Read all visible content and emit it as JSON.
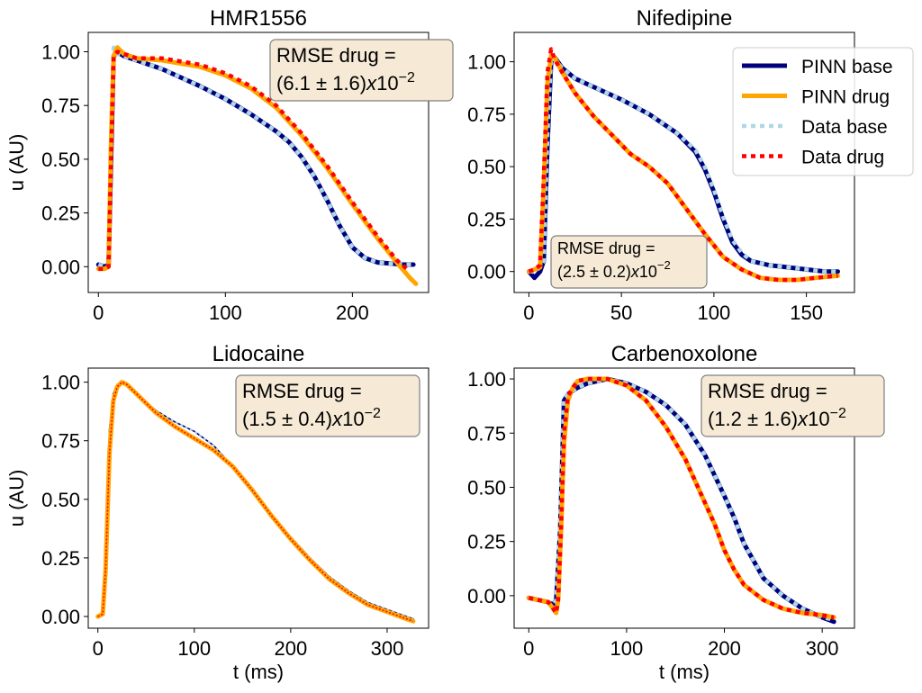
{
  "colors": {
    "pinn_base": "#00007f",
    "pinn_drug": "#ffa500",
    "data_base": "#add8e6",
    "data_drug": "#ff0000",
    "box_fill": "#f6ead6",
    "box_stroke": "#7f7f7f"
  },
  "legend": {
    "entries": [
      {
        "name": "PINN base",
        "style": "pinn_base"
      },
      {
        "name": "PINN drug",
        "style": "pinn_drug"
      },
      {
        "name": "Data base",
        "style": "data_base"
      },
      {
        "name": "Data drug",
        "style": "data_drug"
      }
    ]
  },
  "chart_data": [
    {
      "type": "line",
      "title": "HMR1556",
      "xlabel": "",
      "ylabel": "u (AU)",
      "xlim": [
        -8,
        260
      ],
      "ylim": [
        -0.12,
        1.09
      ],
      "xticks": [
        0,
        100,
        200
      ],
      "yticks": [
        0.0,
        0.25,
        0.5,
        0.75,
        1.0
      ],
      "annotation": {
        "line1": "RMSE drug =",
        "mean": "6.1",
        "sd": "1.6",
        "exp": "-2"
      },
      "series": [
        {
          "name": "PINN base",
          "style": "pinn_base",
          "x": [
            0,
            5,
            8,
            10,
            12,
            15,
            20,
            30,
            50,
            80,
            100,
            120,
            140,
            150,
            160,
            170,
            180,
            190,
            200,
            210,
            220,
            230,
            240,
            248
          ],
          "y": [
            0.01,
            0.0,
            0.01,
            0.5,
            0.98,
            1.0,
            0.98,
            0.96,
            0.92,
            0.84,
            0.78,
            0.71,
            0.63,
            0.58,
            0.51,
            0.42,
            0.31,
            0.19,
            0.09,
            0.04,
            0.02,
            0.015,
            0.01,
            0.01
          ]
        },
        {
          "name": "Data base",
          "style": "data_base",
          "x": [
            0,
            5,
            8,
            10,
            12,
            15,
            20,
            30,
            50,
            80,
            100,
            120,
            140,
            150,
            160,
            170,
            180,
            190,
            200,
            210,
            220,
            230,
            240,
            248
          ],
          "y": [
            0.01,
            0.0,
            0.01,
            0.55,
            1.02,
            0.99,
            0.98,
            0.96,
            0.92,
            0.84,
            0.78,
            0.71,
            0.63,
            0.58,
            0.51,
            0.42,
            0.31,
            0.19,
            0.09,
            0.04,
            0.02,
            0.015,
            0.01,
            0.01
          ]
        },
        {
          "name": "PINN drug",
          "style": "pinn_drug",
          "x": [
            0,
            5,
            8,
            10,
            12,
            15,
            20,
            30,
            50,
            80,
            100,
            120,
            140,
            160,
            180,
            200,
            220,
            235,
            245,
            250
          ],
          "y": [
            -0.01,
            -0.01,
            0.0,
            0.6,
            0.98,
            1.02,
            0.99,
            0.97,
            0.96,
            0.93,
            0.89,
            0.83,
            0.74,
            0.61,
            0.46,
            0.29,
            0.13,
            0.02,
            -0.05,
            -0.08
          ]
        },
        {
          "name": "Data drug",
          "style": "data_drug",
          "x": [
            0,
            5,
            8,
            10,
            12,
            15,
            20,
            30,
            50,
            80,
            100,
            120,
            140,
            160,
            180,
            200,
            220,
            235,
            245
          ],
          "y": [
            -0.01,
            -0.01,
            0.0,
            0.5,
            0.98,
            1.0,
            0.99,
            0.97,
            0.97,
            0.94,
            0.9,
            0.84,
            0.75,
            0.62,
            0.47,
            0.3,
            0.14,
            0.03,
            -0.02
          ]
        }
      ]
    },
    {
      "type": "line",
      "title": "Nifedipine",
      "xlabel": "",
      "ylabel": "",
      "xlim": [
        -8,
        176
      ],
      "ylim": [
        -0.1,
        1.14
      ],
      "xticks": [
        0,
        50,
        100,
        150
      ],
      "yticks": [
        0.0,
        0.25,
        0.5,
        0.75,
        1.0
      ],
      "annotation": {
        "line1": "RMSE drug =",
        "mean": "2.5",
        "sd": "0.2",
        "exp": "-2"
      },
      "series": [
        {
          "name": "PINN base",
          "style": "pinn_base",
          "x": [
            0,
            3,
            6,
            8,
            10,
            12,
            14,
            18,
            25,
            35,
            50,
            65,
            80,
            90,
            95,
            100,
            105,
            110,
            115,
            120,
            130,
            140,
            150,
            160,
            167
          ],
          "y": [
            0.0,
            -0.03,
            0.0,
            0.05,
            0.6,
            1.0,
            1.02,
            0.97,
            0.92,
            0.88,
            0.82,
            0.75,
            0.66,
            0.57,
            0.49,
            0.38,
            0.25,
            0.14,
            0.08,
            0.05,
            0.03,
            0.02,
            0.01,
            0.0,
            0.0
          ]
        },
        {
          "name": "Data base",
          "style": "data_base",
          "x": [
            0,
            3,
            6,
            8,
            10,
            12,
            14,
            18,
            25,
            35,
            50,
            65,
            80,
            90,
            95,
            100,
            105,
            110,
            115,
            120,
            130,
            140,
            150,
            160,
            167
          ],
          "y": [
            0.0,
            0.0,
            0.02,
            0.05,
            0.65,
            1.02,
            1.01,
            0.97,
            0.92,
            0.88,
            0.82,
            0.75,
            0.66,
            0.58,
            0.5,
            0.39,
            0.26,
            0.15,
            0.09,
            0.05,
            0.03,
            0.02,
            0.01,
            0.0,
            0.0
          ]
        },
        {
          "name": "PINN drug",
          "style": "pinn_drug",
          "x": [
            0,
            3,
            6,
            8,
            10,
            12,
            14,
            18,
            25,
            35,
            45,
            55,
            65,
            75,
            85,
            95,
            105,
            115,
            125,
            135,
            145,
            155,
            167
          ],
          "y": [
            0.0,
            0.01,
            0.02,
            0.4,
            0.9,
            1.03,
            1.02,
            0.95,
            0.85,
            0.74,
            0.65,
            0.56,
            0.5,
            0.42,
            0.3,
            0.18,
            0.07,
            0.01,
            -0.03,
            -0.04,
            -0.04,
            -0.03,
            -0.02
          ]
        },
        {
          "name": "Data drug",
          "style": "data_drug",
          "x": [
            0,
            3,
            6,
            8,
            10,
            12,
            14,
            18,
            25,
            35,
            45,
            55,
            65,
            75,
            85,
            95,
            105,
            115,
            125,
            135,
            145,
            155,
            167
          ],
          "y": [
            0.0,
            0.01,
            0.03,
            0.45,
            0.95,
            1.06,
            1.01,
            0.95,
            0.85,
            0.74,
            0.65,
            0.56,
            0.5,
            0.42,
            0.3,
            0.18,
            0.07,
            0.01,
            -0.03,
            -0.04,
            -0.04,
            -0.03,
            -0.02
          ]
        }
      ]
    },
    {
      "type": "line",
      "title": "Lidocaine",
      "xlabel": "t (ms)",
      "ylabel": "u (AU)",
      "xlim": [
        -10,
        343
      ],
      "ylim": [
        -0.05,
        1.06
      ],
      "xticks": [
        0,
        100,
        200,
        300
      ],
      "yticks": [
        0.0,
        0.25,
        0.5,
        0.75,
        1.0
      ],
      "annotation": {
        "line1": "RMSE drug =",
        "mean": "1.5",
        "sd": "0.4",
        "exp": "-2"
      },
      "series": [
        {
          "name": "PINN base",
          "style": "pinn_base",
          "x": [
            0,
            5,
            8,
            12,
            16,
            20,
            25,
            30,
            40,
            60,
            80,
            100,
            120,
            140,
            160,
            180,
            200,
            220,
            240,
            260,
            280,
            300,
            320,
            327
          ],
          "y": [
            0.0,
            0.02,
            0.3,
            0.8,
            0.95,
            0.99,
            1.0,
            0.99,
            0.95,
            0.88,
            0.83,
            0.79,
            0.73,
            0.64,
            0.54,
            0.43,
            0.34,
            0.25,
            0.17,
            0.11,
            0.06,
            0.03,
            0.0,
            -0.01
          ]
        },
        {
          "name": "Data base",
          "style": "data_base",
          "x": [
            0,
            5,
            8,
            12,
            16,
            20,
            25,
            30,
            40,
            60,
            80,
            100,
            120,
            140,
            160,
            180,
            200,
            220,
            240,
            260,
            280,
            300,
            320,
            327
          ],
          "y": [
            0.0,
            0.02,
            0.3,
            0.8,
            0.95,
            0.99,
            1.0,
            0.99,
            0.95,
            0.88,
            0.83,
            0.79,
            0.73,
            0.64,
            0.54,
            0.43,
            0.34,
            0.25,
            0.17,
            0.11,
            0.06,
            0.03,
            0.0,
            -0.01
          ]
        },
        {
          "name": "PINN drug",
          "style": "pinn_drug",
          "x": [
            0,
            5,
            8,
            12,
            16,
            20,
            25,
            30,
            40,
            60,
            80,
            100,
            120,
            140,
            160,
            180,
            200,
            220,
            240,
            260,
            280,
            300,
            320,
            327
          ],
          "y": [
            0.0,
            0.01,
            0.2,
            0.7,
            0.92,
            0.98,
            1.0,
            0.99,
            0.95,
            0.87,
            0.81,
            0.76,
            0.71,
            0.64,
            0.54,
            0.43,
            0.33,
            0.24,
            0.16,
            0.1,
            0.05,
            0.02,
            -0.01,
            -0.02
          ]
        },
        {
          "name": "Data drug",
          "style": "data_drug",
          "x": [
            0,
            5,
            8,
            12,
            16,
            20,
            25,
            30,
            40,
            60,
            80,
            100,
            120,
            140,
            160,
            180,
            200,
            220,
            240,
            260,
            280,
            300,
            320,
            327
          ],
          "y": [
            0.0,
            0.01,
            0.2,
            0.7,
            0.92,
            0.98,
            1.0,
            0.99,
            0.95,
            0.87,
            0.81,
            0.76,
            0.71,
            0.64,
            0.54,
            0.43,
            0.33,
            0.24,
            0.16,
            0.1,
            0.05,
            0.02,
            -0.01,
            -0.02
          ]
        }
      ]
    },
    {
      "type": "line",
      "title": "Carbenoxolone",
      "xlabel": "t (ms)",
      "ylabel": "",
      "xlim": [
        -15,
        333
      ],
      "ylim": [
        -0.15,
        1.05
      ],
      "xticks": [
        0,
        100,
        200,
        300
      ],
      "yticks": [
        0.0,
        0.25,
        0.5,
        0.75,
        1.0
      ],
      "annotation": {
        "line1": "RMSE drug =",
        "mean": "1.2",
        "sd": "1.6",
        "exp": "-2"
      },
      "series": [
        {
          "name": "PINN base",
          "style": "pinn_base",
          "x": [
            0,
            10,
            20,
            25,
            28,
            32,
            36,
            40,
            50,
            60,
            80,
            100,
            120,
            140,
            160,
            180,
            200,
            210,
            220,
            240,
            260,
            280,
            300,
            312
          ],
          "y": [
            -0.01,
            -0.02,
            -0.03,
            -0.04,
            -0.02,
            0.3,
            0.9,
            0.93,
            0.96,
            0.98,
            1.0,
            0.98,
            0.94,
            0.88,
            0.79,
            0.65,
            0.46,
            0.36,
            0.24,
            0.08,
            0.0,
            -0.06,
            -0.1,
            -0.12
          ]
        },
        {
          "name": "Data base",
          "style": "data_base",
          "x": [
            0,
            10,
            20,
            25,
            28,
            32,
            36,
            40,
            50,
            60,
            80,
            100,
            120,
            140,
            160,
            180,
            200,
            210,
            220,
            240,
            260,
            280,
            300,
            312
          ],
          "y": [
            -0.01,
            -0.02,
            -0.03,
            -0.04,
            -0.02,
            0.35,
            0.91,
            0.93,
            0.96,
            0.98,
            1.0,
            0.98,
            0.94,
            0.88,
            0.79,
            0.65,
            0.46,
            0.36,
            0.24,
            0.08,
            0.0,
            -0.06,
            -0.1,
            -0.11
          ]
        },
        {
          "name": "PINN drug",
          "style": "pinn_drug",
          "x": [
            0,
            10,
            20,
            25,
            28,
            30,
            33,
            36,
            40,
            45,
            50,
            60,
            80,
            100,
            120,
            140,
            160,
            180,
            190,
            200,
            210,
            220,
            240,
            260,
            280,
            300,
            312
          ],
          "y": [
            -0.01,
            -0.02,
            -0.03,
            -0.06,
            -0.08,
            -0.02,
            0.3,
            0.7,
            0.9,
            0.96,
            0.99,
            1.0,
            1.0,
            0.97,
            0.9,
            0.78,
            0.63,
            0.43,
            0.33,
            0.21,
            0.12,
            0.05,
            -0.02,
            -0.06,
            -0.08,
            -0.09,
            -0.1
          ]
        },
        {
          "name": "Data drug",
          "style": "data_drug",
          "x": [
            0,
            10,
            20,
            25,
            28,
            30,
            33,
            36,
            40,
            45,
            50,
            60,
            80,
            100,
            120,
            140,
            160,
            180,
            190,
            200,
            210,
            220,
            240,
            260,
            280,
            300,
            312
          ],
          "y": [
            -0.01,
            -0.02,
            -0.03,
            -0.06,
            -0.08,
            -0.02,
            0.3,
            0.75,
            0.92,
            0.96,
            0.99,
            1.0,
            1.0,
            0.97,
            0.9,
            0.78,
            0.63,
            0.43,
            0.33,
            0.21,
            0.12,
            0.05,
            -0.02,
            -0.06,
            -0.08,
            -0.09,
            -0.1
          ]
        }
      ]
    }
  ]
}
